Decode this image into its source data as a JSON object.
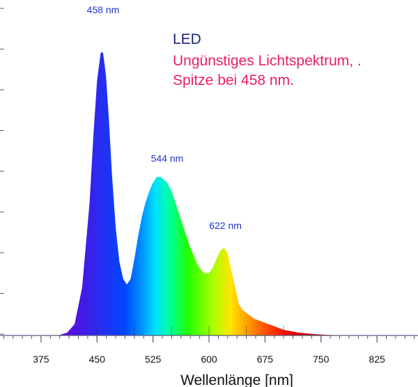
{
  "chart_data": {
    "type": "area",
    "xlabel": "Wellenlänge [nm]",
    "ylabel": "",
    "xlim": [
      320,
      880
    ],
    "ylim": [
      0,
      1.07
    ],
    "xticks": [
      375,
      450,
      525,
      600,
      675,
      750,
      825
    ],
    "grid": false,
    "x": [
      400,
      410,
      420,
      430,
      440,
      445,
      450,
      455,
      458,
      462,
      466,
      470,
      475,
      480,
      485,
      490,
      495,
      500,
      505,
      510,
      515,
      520,
      525,
      530,
      535,
      540,
      544,
      550,
      555,
      560,
      565,
      570,
      575,
      580,
      585,
      590,
      595,
      600,
      605,
      610,
      615,
      620,
      625,
      630,
      635,
      640,
      645,
      650,
      655,
      660,
      670,
      680,
      690,
      700,
      720,
      740,
      760,
      780
    ],
    "values": [
      0.002,
      0.01,
      0.04,
      0.17,
      0.47,
      0.7,
      0.9,
      1.0,
      1.0,
      0.92,
      0.76,
      0.57,
      0.38,
      0.26,
      0.2,
      0.18,
      0.2,
      0.27,
      0.35,
      0.42,
      0.47,
      0.51,
      0.54,
      0.56,
      0.56,
      0.55,
      0.54,
      0.51,
      0.47,
      0.43,
      0.39,
      0.35,
      0.31,
      0.28,
      0.25,
      0.23,
      0.22,
      0.22,
      0.24,
      0.27,
      0.3,
      0.31,
      0.29,
      0.23,
      0.17,
      0.11,
      0.09,
      0.08,
      0.07,
      0.06,
      0.05,
      0.04,
      0.03,
      0.02,
      0.01,
      0.005,
      0.002,
      0.001
    ],
    "peak_labels": [
      {
        "x": 458,
        "text": "458 nm"
      },
      {
        "x": 544,
        "text": "544 nm"
      },
      {
        "x": 622,
        "text": "622 nm"
      }
    ]
  },
  "annotation": {
    "title": "LED",
    "line1": "Ungünstiges Lichtspektrum, .",
    "line2": "Spitze bei 458 nm."
  },
  "colors": {
    "axis": "#5a5a7a",
    "label": "#2233cc",
    "title": "#1a237e",
    "accent": "#e91e63"
  }
}
